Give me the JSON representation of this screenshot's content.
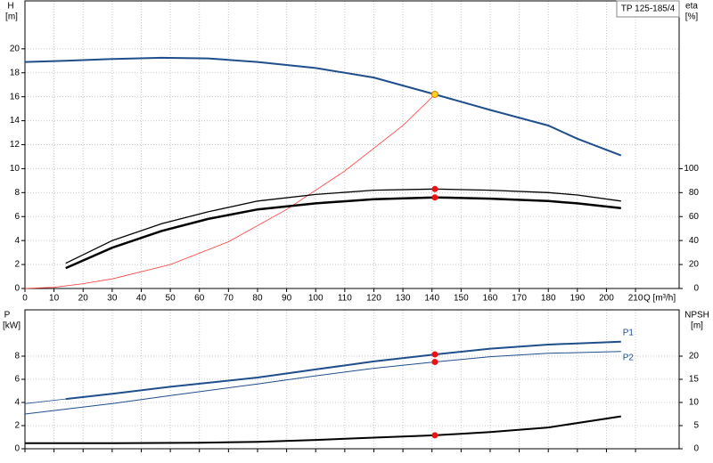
{
  "chart_data": [
    {
      "type": "line",
      "title": "TP 125-185/4",
      "y_label": "H",
      "y_unit": "[m]",
      "y2_label": "eta",
      "y2_unit": "[%]",
      "x_label": "Q [m³/h]",
      "xlim": [
        0,
        225
      ],
      "xticks": [
        0,
        10,
        20,
        30,
        40,
        50,
        60,
        70,
        80,
        90,
        100,
        110,
        120,
        130,
        140,
        150,
        160,
        170,
        180,
        190,
        200,
        210
      ],
      "show_xtick_labels": true,
      "ylim": [
        0,
        24
      ],
      "yticks": [
        0,
        2,
        4,
        6,
        8,
        10,
        12,
        14,
        16,
        18,
        20
      ],
      "y2lim": [
        0,
        240
      ],
      "y2ticks": [
        0,
        20,
        40,
        60,
        80,
        100
      ],
      "grid": true,
      "series": [
        {
          "color": "#1f4e8c",
          "width": 2,
          "x": [
            0,
            14,
            30,
            47,
            63,
            80,
            100,
            120,
            141,
            160,
            180,
            190,
            205
          ],
          "values": [
            18.9,
            19.0,
            19.15,
            19.25,
            19.2,
            18.9,
            18.4,
            17.6,
            16.2,
            14.9,
            13.6,
            12.5,
            11.1
          ]
        },
        {
          "color": "#ff3b3b",
          "width": 0.8,
          "x": [
            0,
            10,
            20,
            30,
            50,
            70,
            90,
            110,
            130,
            141
          ],
          "values": [
            0,
            0.1,
            0.4,
            0.8,
            2.0,
            3.9,
            6.6,
            9.8,
            13.6,
            16.2
          ]
        },
        {
          "color": "#000000",
          "width": 1.3,
          "axis": "y2",
          "x": [
            14,
            30,
            47,
            63,
            80,
            100,
            120,
            141,
            160,
            180,
            190,
            205
          ],
          "values": [
            21,
            40,
            54,
            64,
            73,
            78.5,
            82,
            83,
            82,
            80,
            78,
            73
          ]
        },
        {
          "color": "#000000",
          "width": 2.5,
          "axis": "y2",
          "x": [
            14,
            30,
            47,
            63,
            80,
            100,
            120,
            141,
            160,
            180,
            190,
            205
          ],
          "values": [
            17,
            34,
            48,
            58,
            66,
            71,
            74.5,
            76,
            75,
            73,
            71,
            67
          ]
        },
        {
          "style": "point",
          "color": "#ffd21f",
          "x": [
            141
          ],
          "values": [
            16.2
          ]
        },
        {
          "style": "point",
          "color": "#ee1111",
          "axis": "y2",
          "x": [
            141,
            141
          ],
          "values": [
            83,
            76
          ]
        }
      ]
    },
    {
      "type": "line",
      "y_label": "P",
      "y_unit": "[kW]",
      "y2_label": "NPSH",
      "y2_unit": "[m]",
      "xlim": [
        0,
        225
      ],
      "xticks": [
        0,
        10,
        20,
        30,
        40,
        50,
        60,
        70,
        80,
        90,
        100,
        110,
        120,
        130,
        140,
        150,
        160,
        170,
        180,
        190,
        200,
        210
      ],
      "show_xtick_labels": false,
      "ylim": [
        0,
        12
      ],
      "yticks": [
        0,
        2,
        4,
        6,
        8
      ],
      "y2lim": [
        0,
        30
      ],
      "y2ticks": [
        0,
        5,
        10,
        15,
        20
      ],
      "grid": true,
      "series": [
        {
          "name": "P1",
          "color": "#1f4e8c",
          "width": 2,
          "x": [
            14,
            30,
            50,
            80,
            100,
            120,
            141,
            160,
            180,
            205
          ],
          "values": [
            4.3,
            4.75,
            5.35,
            6.15,
            6.85,
            7.55,
            8.15,
            8.65,
            9.0,
            9.25
          ]
        },
        {
          "color": "#1f4e8c",
          "width": 0.8,
          "x": [
            0,
            14
          ],
          "values": [
            3.9,
            4.3
          ]
        },
        {
          "name": "P2",
          "color": "#1f4e8c",
          "width": 1,
          "x": [
            0,
            30,
            50,
            80,
            100,
            120,
            141,
            160,
            180,
            205
          ],
          "values": [
            3.0,
            3.9,
            4.6,
            5.6,
            6.3,
            6.95,
            7.5,
            7.95,
            8.25,
            8.4
          ]
        },
        {
          "color": "#000000",
          "width": 2,
          "axis": "y2",
          "x": [
            0,
            30,
            60,
            80,
            100,
            120,
            141,
            160,
            180,
            205
          ],
          "values": [
            1.2,
            1.2,
            1.3,
            1.5,
            1.9,
            2.4,
            2.9,
            3.6,
            4.6,
            7.0
          ]
        },
        {
          "style": "point",
          "color": "#ee1111",
          "x": [
            141,
            141
          ],
          "values": [
            8.15,
            7.5
          ]
        },
        {
          "style": "point",
          "color": "#ee1111",
          "axis": "y2",
          "x": [
            141
          ],
          "values": [
            2.9
          ]
        }
      ]
    }
  ]
}
